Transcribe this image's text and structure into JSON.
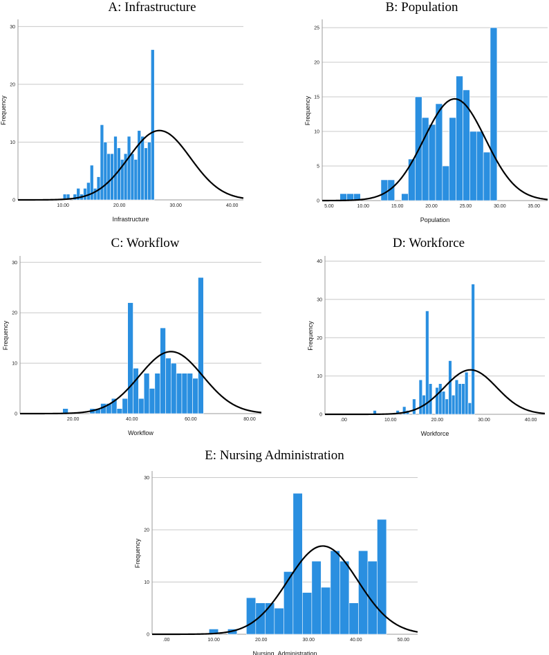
{
  "colors": {
    "bar": "#2a8fe0",
    "bar_edge": "#ffffff",
    "curve": "#000000",
    "grid": "#c8c8c8"
  },
  "chart_data": [
    {
      "id": "A",
      "type": "bar",
      "title": "A: Infrastructure",
      "xlabel": "Infrastructure",
      "ylabel": "Frequency",
      "xlim": [
        2,
        42
      ],
      "ylim": [
        0,
        31
      ],
      "xticks": [
        10,
        20,
        30,
        40
      ],
      "xtick_labels": [
        "10.00",
        "20.00",
        "30.00",
        "40.00"
      ],
      "yticks": [
        0,
        10,
        20,
        30
      ],
      "ytick_labels": [
        "0",
        "10",
        "20",
        "30"
      ],
      "bin_start": 10,
      "bin_width": 0.6,
      "values": [
        1,
        1,
        0,
        1,
        2,
        1,
        2,
        3,
        6,
        2,
        4,
        13,
        10,
        8,
        8,
        11,
        9,
        7,
        8,
        11,
        8,
        7,
        12,
        11,
        9,
        10,
        26
      ],
      "normal": {
        "mean": 27.1,
        "sd": 5.5,
        "peak": 12
      }
    },
    {
      "id": "B",
      "type": "bar",
      "title": "B: Population",
      "xlabel": "Population",
      "ylabel": "Frequency",
      "xlim": [
        4,
        37
      ],
      "ylim": [
        0,
        26
      ],
      "xticks": [
        5,
        10,
        15,
        20,
        25,
        30,
        35
      ],
      "xtick_labels": [
        "5.00",
        "10.00",
        "15.00",
        "20.00",
        "25.00",
        "30.00",
        "35.00"
      ],
      "yticks": [
        0,
        5,
        10,
        15,
        20,
        25
      ],
      "ytick_labels": [
        "0",
        "5",
        "10",
        "15",
        "20",
        "25"
      ],
      "bin_start": 6.6,
      "bin_width": 1.0,
      "values": [
        1,
        1,
        1,
        0,
        0,
        0,
        3,
        3,
        0,
        1,
        6,
        15,
        12,
        11,
        14,
        5,
        12,
        18,
        16,
        10,
        10,
        7,
        25
      ],
      "normal": {
        "mean": 23.4,
        "sd": 4.5,
        "peak": 14.7
      }
    },
    {
      "id": "C",
      "type": "bar",
      "title": "C: Workflow",
      "xlabel": "Workflow",
      "ylabel": "Frequency",
      "xlim": [
        2,
        84
      ],
      "ylim": [
        0,
        31
      ],
      "xticks": [
        20,
        40,
        60,
        80
      ],
      "xtick_labels": [
        "20.00",
        "40.00",
        "60.00",
        "80.00"
      ],
      "yticks": [
        0,
        10,
        20,
        30
      ],
      "ytick_labels": [
        "0",
        "10",
        "20",
        "30"
      ],
      "bin_start": 16.5,
      "bin_width": 1.84,
      "values": [
        1,
        0,
        0,
        0,
        0,
        1,
        1,
        2,
        2,
        3,
        1,
        3,
        22,
        9,
        3,
        8,
        5,
        8,
        17,
        11,
        10,
        8,
        8,
        8,
        7,
        27
      ],
      "normal": {
        "mean": 53.3,
        "sd": 10.8,
        "peak": 12.3
      }
    },
    {
      "id": "D",
      "type": "bar",
      "title": "D: Workforce",
      "xlabel": "Workforce",
      "ylabel": "Frequency",
      "xlim": [
        -4,
        43
      ],
      "ylim": [
        0,
        41
      ],
      "xticks": [
        0,
        10,
        20,
        30,
        40
      ],
      "xtick_labels": [
        ".00",
        "10.00",
        "20.00",
        "30.00",
        "40.00"
      ],
      "yticks": [
        0,
        10,
        20,
        30,
        40
      ],
      "ytick_labels": [
        "0",
        "10",
        "20",
        "30",
        "40"
      ],
      "bin_start": 6.3,
      "bin_width": 0.7,
      "values": [
        1,
        0,
        0,
        0,
        0,
        0,
        0,
        1,
        0,
        2,
        1,
        0,
        4,
        0,
        9,
        5,
        27,
        8,
        0,
        7,
        8,
        6,
        4,
        14,
        5,
        9,
        8,
        8,
        11,
        3,
        34
      ],
      "normal": {
        "mean": 27.1,
        "sd": 5.6,
        "peak": 11.6
      }
    },
    {
      "id": "E",
      "type": "bar",
      "title": "E: Nursing Administration",
      "xlabel": "Nursing_Administration",
      "ylabel": "Frequency",
      "xlim": [
        -3,
        53
      ],
      "ylim": [
        0,
        31
      ],
      "xticks": [
        0,
        10,
        20,
        30,
        40,
        50
      ],
      "xtick_labels": [
        ".00",
        "10.00",
        "20.00",
        "30.00",
        "40.00",
        "50.00"
      ],
      "yticks": [
        0,
        10,
        20,
        30
      ],
      "ytick_labels": [
        "0",
        "10",
        "20",
        "30"
      ],
      "bin_start": 9.0,
      "bin_width": 1.97,
      "values": [
        1,
        0,
        1,
        0,
        7,
        6,
        6,
        5,
        12,
        27,
        8,
        14,
        9,
        16,
        14,
        6,
        16,
        14,
        22
      ],
      "normal": {
        "mean": 33.0,
        "sd": 7.4,
        "peak": 16.9
      }
    }
  ]
}
